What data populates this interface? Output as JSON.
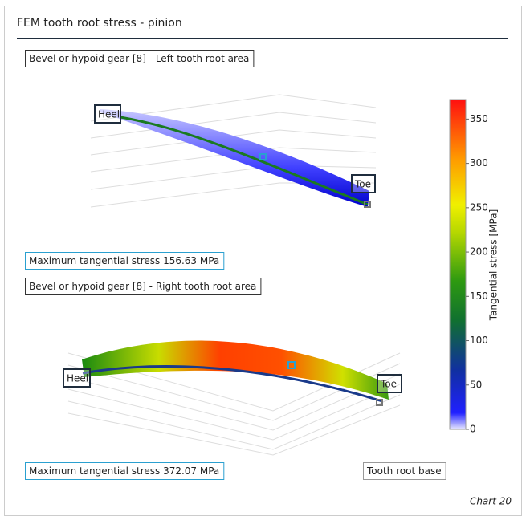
{
  "header": {
    "title": "FEM tooth root stress - pinion"
  },
  "panels": [
    {
      "label": "Bevel or hypoid gear [8] - Left tooth root area",
      "heel": "Heel",
      "toe": "Toe",
      "max_label": "Maximum tangential stress 156.63 MPa"
    },
    {
      "label": "Bevel or hypoid gear [8] - Right tooth root area",
      "heel": "Heel",
      "toe": "Toe",
      "max_label": "Maximum tangential stress 372.07 MPa"
    }
  ],
  "colorbar": {
    "title": "Tangential stress [MPa]",
    "lim": [
      0,
      372.07
    ],
    "ticks": [
      0,
      50,
      100,
      150,
      200,
      250,
      300,
      350
    ]
  },
  "legend_button": "Tooth root base",
  "footer": "Chart 20"
}
